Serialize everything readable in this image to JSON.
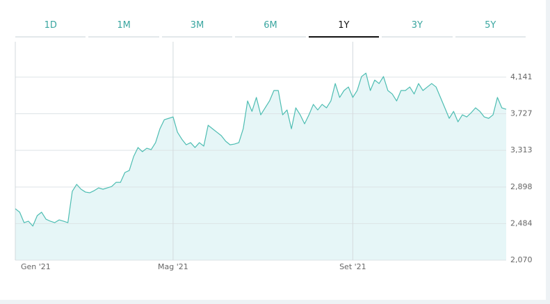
{
  "tabs": [
    "1D",
    "1M",
    "3M",
    "6M",
    "1Y",
    "3Y",
    "5Y"
  ],
  "selected_tab": 4,
  "chart_data": {
    "type": "area",
    "color": "#4dbdb2",
    "fill": "#e6f6f7",
    "grid": true,
    "values": [
      2652,
      2613,
      2495,
      2511,
      2456,
      2574,
      2613,
      2534,
      2511,
      2495,
      2526,
      2511,
      2495,
      2849,
      2928,
      2873,
      2841,
      2833,
      2857,
      2888,
      2873,
      2888,
      2904,
      2951,
      2951,
      3062,
      3085,
      3243,
      3345,
      3298,
      3337,
      3321,
      3400,
      3557,
      3660,
      3675,
      3691,
      3518,
      3439,
      3376,
      3400,
      3345,
      3400,
      3361,
      3597,
      3557,
      3518,
      3479,
      3416,
      3376,
      3384,
      3400,
      3557,
      3872,
      3754,
      3912,
      3715,
      3794,
      3872,
      3990,
      3990,
      3715,
      3770,
      3557,
      3794,
      3715,
      3613,
      3715,
      3833,
      3770,
      3833,
      3794,
      3872,
      4069,
      3912,
      3990,
      4030,
      3912,
      3990,
      4148,
      4187,
      3990,
      4108,
      4069,
      4148,
      3990,
      3951,
      3872,
      3990,
      3990,
      4030,
      3951,
      4069,
      3990,
      4030,
      4069,
      4030,
      3912,
      3794,
      3675,
      3754,
      3636,
      3715,
      3691,
      3738,
      3794,
      3754,
      3691,
      3675,
      3715,
      3912,
      3794,
      3778
    ],
    "xlim": [
      0,
      112
    ],
    "xticks": [
      {
        "value": 0,
        "label": "Gen '21"
      },
      {
        "value": 36,
        "label": "Mag '21"
      },
      {
        "value": 77,
        "label": "Set '21"
      }
    ],
    "ylim": [
      2070,
      4542
    ],
    "yticks": [
      {
        "value": 2070,
        "label": "2,070"
      },
      {
        "value": 2484,
        "label": "2,484"
      },
      {
        "value": 2898,
        "label": "2,898"
      },
      {
        "value": 3313,
        "label": "3,313"
      },
      {
        "value": 3727,
        "label": "3,727"
      },
      {
        "value": 4141,
        "label": "4,141"
      }
    ]
  }
}
